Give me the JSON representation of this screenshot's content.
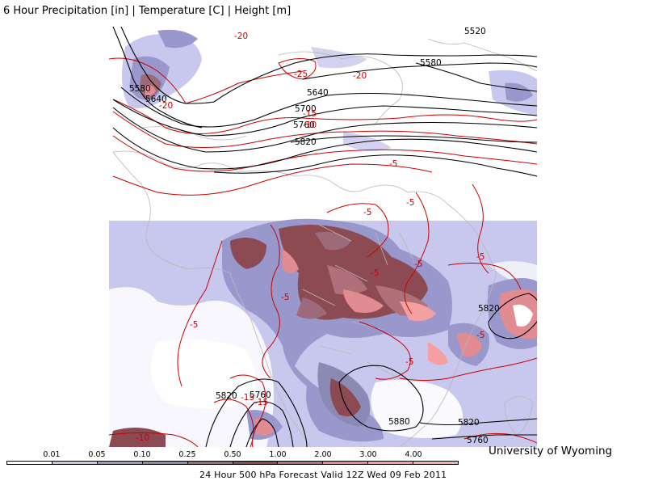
{
  "header": {
    "title": "6 Hour Precipitation [in] | Temperature [C] | Height [m]"
  },
  "credit": "University of Wyoming",
  "footer": "24 Hour 500 hPa Forecast Valid 12Z Wed 09 Feb 2011",
  "colorbar": {
    "ticks": [
      "0.01",
      "0.05",
      "0.10",
      "0.25",
      "0.50",
      "1.00",
      "2.00",
      "3.00",
      "4.00"
    ],
    "colors": [
      "#ffffff",
      "#c8c8ee",
      "#9898cc",
      "#8a8ab4",
      "#9c6a78",
      "#8c4a52",
      "#b0707a",
      "#e08c92",
      "#f4a0a0",
      "#f4b0b0"
    ]
  },
  "map": {
    "height_labels": [
      "5520",
      "5580",
      "5580",
      "5640",
      "5640",
      "5700",
      "5760",
      "5820",
      "5820",
      "5760",
      "5820",
      "5880",
      "5820",
      "5760"
    ],
    "temp_labels": [
      "-20",
      "-20",
      "-25",
      "-20",
      "-15",
      "-10",
      "-5",
      "-5",
      "-5",
      "-5",
      "-5",
      "-5",
      "-5",
      "-5",
      "-5",
      "-5",
      "-15",
      "-15",
      "-10"
    ]
  }
}
